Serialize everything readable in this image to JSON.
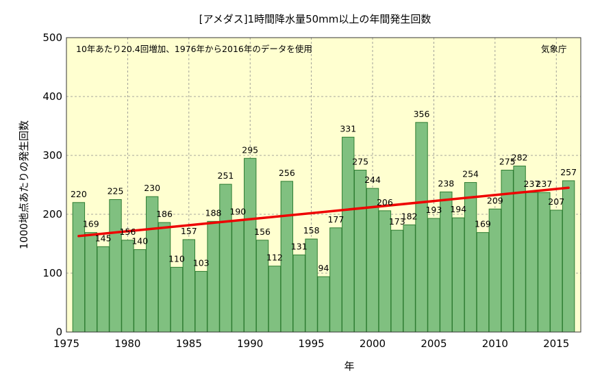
{
  "chart_data": {
    "type": "bar",
    "title": "[アメダス]1時間降水量50mm以上の年間発生回数",
    "xlabel": "年",
    "ylabel": "1000地点あたりの発生回数",
    "annotation": "10年あたり20.4回増加、1976年から2016年のデータを使用",
    "source": "気象庁",
    "x": [
      1976,
      1977,
      1978,
      1979,
      1980,
      1981,
      1982,
      1983,
      1984,
      1985,
      1986,
      1987,
      1988,
      1989,
      1990,
      1991,
      1992,
      1993,
      1994,
      1995,
      1996,
      1997,
      1998,
      1999,
      2000,
      2001,
      2002,
      2003,
      2004,
      2005,
      2006,
      2007,
      2008,
      2009,
      2010,
      2011,
      2012,
      2013,
      2014,
      2015,
      2016
    ],
    "values": [
      220,
      169,
      145,
      225,
      156,
      140,
      230,
      186,
      110,
      157,
      103,
      188,
      251,
      190,
      295,
      156,
      112,
      256,
      131,
      158,
      94,
      177,
      331,
      275,
      244,
      206,
      173,
      182,
      356,
      193,
      238,
      194,
      254,
      169,
      209,
      275,
      282,
      237,
      237,
      207,
      257
    ],
    "xlim": [
      1975,
      2017
    ],
    "ylim": [
      0,
      500
    ],
    "xticks": [
      1975,
      1980,
      1985,
      1990,
      1995,
      2000,
      2005,
      2010,
      2015
    ],
    "yticks": [
      0,
      100,
      200,
      300,
      400,
      500
    ],
    "grid": true,
    "trend": {
      "start": [
        1976,
        163
      ],
      "end": [
        2016,
        245
      ]
    },
    "colors": {
      "bar_fill": "#80c080",
      "bar_edge": "#2e7d32",
      "trend": "#ee0000",
      "plot_background": "#ffffd0"
    }
  }
}
